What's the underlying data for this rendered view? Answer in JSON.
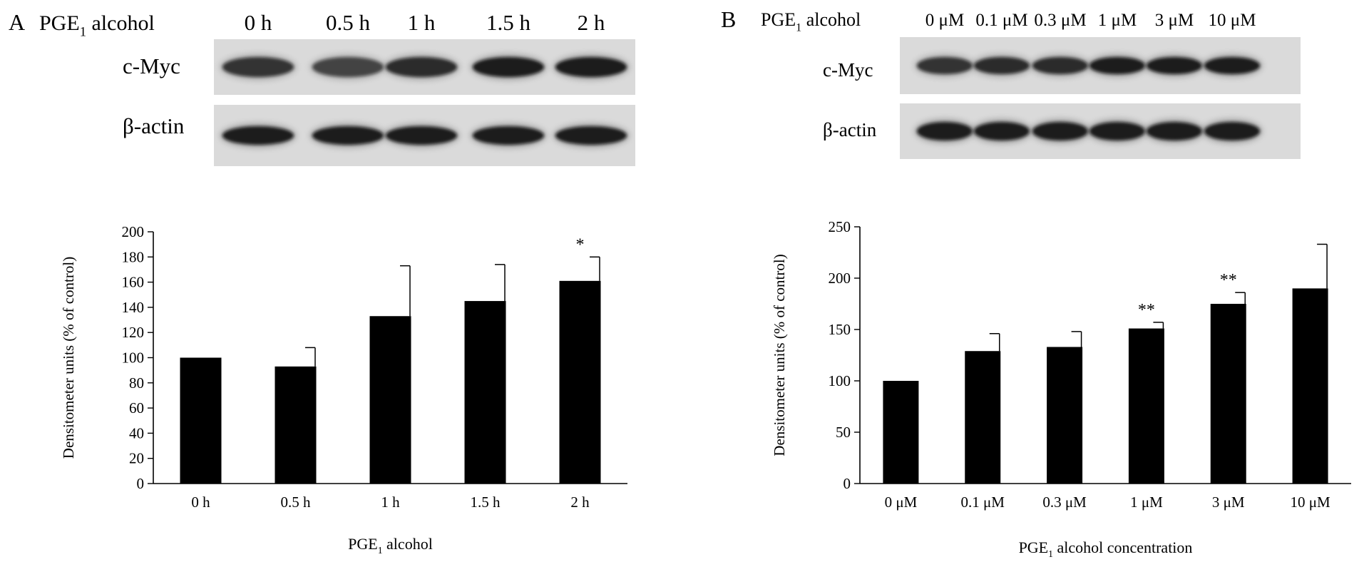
{
  "panels": [
    {
      "panel_label": "A",
      "treatment_prefix": "PGE",
      "treatment_sub": "1",
      "treatment_suffix": " alcohol",
      "lane_labels": [
        "0 h",
        "0.5 h",
        "1 h",
        "1.5 h",
        "2 h"
      ],
      "blot_rows": [
        "c-Myc",
        "β-actin"
      ]
    },
    {
      "panel_label": "B",
      "treatment_prefix": "PGE",
      "treatment_sub": "1",
      "treatment_suffix": " alcohol",
      "lane_labels": [
        "0 μM",
        "0.1 μM",
        "0.3 μM",
        "1 μM",
        "3 μM",
        "10 μM"
      ],
      "blot_rows": [
        "c-Myc",
        "β-actin"
      ]
    }
  ],
  "chart_data": [
    {
      "type": "bar",
      "categories": [
        "0 h",
        "0.5 h",
        "1 h",
        "1.5 h",
        "2 h"
      ],
      "values": [
        100,
        93,
        133,
        145,
        161
      ],
      "errors": [
        0,
        15,
        40,
        29,
        19
      ],
      "significance": [
        "",
        "",
        "",
        "",
        "*"
      ],
      "ylim": [
        0,
        200
      ],
      "yticks": [
        0,
        20,
        40,
        60,
        80,
        100,
        120,
        140,
        160,
        180,
        200
      ],
      "ylabel": "Densitometer units (% of control)",
      "xlabel_prefix": "PGE",
      "xlabel_sub": "1",
      "xlabel_suffix": " alcohol",
      "bar_color": "#000000"
    },
    {
      "type": "bar",
      "categories": [
        "0 μM",
        "0.1 μM",
        "0.3 μM",
        "1 μM",
        "3 μM",
        "10 μM"
      ],
      "values": [
        100,
        129,
        133,
        151,
        175,
        190
      ],
      "errors": [
        0,
        17,
        15,
        6,
        11,
        43
      ],
      "significance": [
        "",
        "",
        "",
        "**",
        "**",
        ""
      ],
      "ylim": [
        0,
        250
      ],
      "yticks": [
        0,
        50,
        100,
        150,
        200,
        250
      ],
      "ylabel": "Densitometer units (% of control)",
      "xlabel_prefix": "PGE",
      "xlabel_sub": "1",
      "xlabel_suffix": " alcohol concentration",
      "bar_color": "#000000"
    }
  ]
}
